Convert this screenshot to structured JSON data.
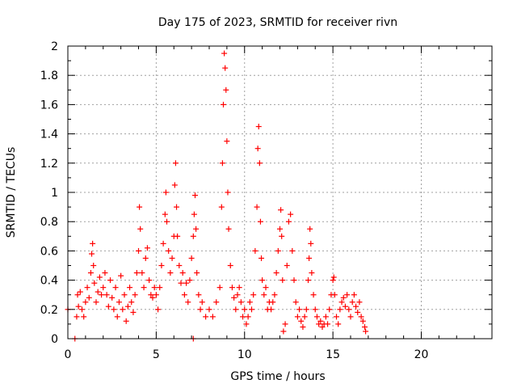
{
  "chart_data": {
    "type": "scatter",
    "title": "Day 175 of 2023, SRMTID for receiver rivn",
    "xlabel": "GPS time / hours",
    "ylabel": "SRMTID / TECUs",
    "xlim": [
      0,
      24
    ],
    "ylim": [
      0,
      2
    ],
    "x_ticks": [
      "0",
      "5",
      "10",
      "15",
      "20"
    ],
    "y_ticks": [
      "0",
      "0.2",
      "0.4",
      "0.6",
      "0.8",
      "1",
      "1.2",
      "1.4",
      "1.6",
      "1.8",
      "2"
    ],
    "grid": true,
    "marker": "+",
    "series": [
      {
        "color": "#ff0000",
        "points": [
          [
            0.0,
            0.2
          ],
          [
            0.4,
            0.0
          ],
          [
            0.5,
            0.15
          ],
          [
            0.55,
            0.3
          ],
          [
            0.6,
            0.22
          ],
          [
            0.7,
            0.32
          ],
          [
            0.8,
            0.2
          ],
          [
            0.9,
            0.15
          ],
          [
            1.0,
            0.25
          ],
          [
            1.1,
            0.35
          ],
          [
            1.2,
            0.28
          ],
          [
            1.3,
            0.45
          ],
          [
            1.35,
            0.58
          ],
          [
            1.4,
            0.65
          ],
          [
            1.45,
            0.5
          ],
          [
            1.5,
            0.38
          ],
          [
            1.6,
            0.25
          ],
          [
            1.7,
            0.32
          ],
          [
            1.8,
            0.42
          ],
          [
            1.9,
            0.3
          ],
          [
            2.0,
            0.35
          ],
          [
            2.1,
            0.45
          ],
          [
            2.2,
            0.3
          ],
          [
            2.3,
            0.22
          ],
          [
            2.4,
            0.4
          ],
          [
            2.5,
            0.28
          ],
          [
            2.6,
            0.2
          ],
          [
            2.7,
            0.35
          ],
          [
            2.8,
            0.15
          ],
          [
            2.9,
            0.25
          ],
          [
            3.0,
            0.43
          ],
          [
            3.1,
            0.2
          ],
          [
            3.2,
            0.3
          ],
          [
            3.3,
            0.12
          ],
          [
            3.4,
            0.22
          ],
          [
            3.5,
            0.35
          ],
          [
            3.6,
            0.25
          ],
          [
            3.7,
            0.18
          ],
          [
            3.8,
            0.3
          ],
          [
            3.9,
            0.45
          ],
          [
            4.0,
            0.6
          ],
          [
            4.05,
            0.9
          ],
          [
            4.1,
            0.75
          ],
          [
            4.2,
            0.45
          ],
          [
            4.3,
            0.35
          ],
          [
            4.4,
            0.55
          ],
          [
            4.5,
            0.62
          ],
          [
            4.6,
            0.4
          ],
          [
            4.7,
            0.3
          ],
          [
            4.8,
            0.28
          ],
          [
            4.9,
            0.35
          ],
          [
            5.0,
            0.3
          ],
          [
            5.1,
            0.2
          ],
          [
            5.2,
            0.35
          ],
          [
            5.3,
            0.5
          ],
          [
            5.4,
            0.65
          ],
          [
            5.5,
            0.85
          ],
          [
            5.55,
            1.0
          ],
          [
            5.6,
            0.8
          ],
          [
            5.7,
            0.6
          ],
          [
            5.8,
            0.45
          ],
          [
            5.9,
            0.55
          ],
          [
            6.0,
            0.7
          ],
          [
            6.05,
            1.05
          ],
          [
            6.1,
            1.2
          ],
          [
            6.15,
            0.9
          ],
          [
            6.2,
            0.7
          ],
          [
            6.3,
            0.5
          ],
          [
            6.4,
            0.38
          ],
          [
            6.5,
            0.45
          ],
          [
            6.6,
            0.3
          ],
          [
            6.7,
            0.38
          ],
          [
            6.8,
            0.25
          ],
          [
            6.9,
            0.4
          ],
          [
            7.0,
            0.55
          ],
          [
            7.1,
            0.7
          ],
          [
            7.15,
            0.85
          ],
          [
            7.2,
            0.98
          ],
          [
            7.25,
            0.75
          ],
          [
            7.3,
            0.45
          ],
          [
            7.4,
            0.3
          ],
          [
            7.5,
            0.2
          ],
          [
            7.6,
            0.25
          ],
          [
            7.8,
            0.15
          ],
          [
            8.0,
            0.2
          ],
          [
            8.2,
            0.15
          ],
          [
            8.4,
            0.25
          ],
          [
            8.6,
            0.35
          ],
          [
            8.7,
            0.9
          ],
          [
            8.75,
            1.2
          ],
          [
            8.8,
            1.6
          ],
          [
            8.85,
            1.95
          ],
          [
            8.9,
            1.85
          ],
          [
            8.95,
            1.7
          ],
          [
            9.0,
            1.35
          ],
          [
            9.05,
            1.0
          ],
          [
            9.1,
            0.75
          ],
          [
            9.2,
            0.5
          ],
          [
            9.3,
            0.35
          ],
          [
            9.4,
            0.28
          ],
          [
            9.5,
            0.2
          ],
          [
            9.6,
            0.3
          ],
          [
            9.7,
            0.35
          ],
          [
            9.8,
            0.25
          ],
          [
            9.9,
            0.15
          ],
          [
            10.0,
            0.2
          ],
          [
            10.1,
            0.1
          ],
          [
            10.2,
            0.15
          ],
          [
            10.3,
            0.25
          ],
          [
            10.4,
            0.2
          ],
          [
            10.5,
            0.3
          ],
          [
            10.6,
            0.6
          ],
          [
            10.7,
            0.9
          ],
          [
            10.75,
            1.3
          ],
          [
            10.8,
            1.45
          ],
          [
            10.85,
            1.2
          ],
          [
            10.9,
            0.8
          ],
          [
            10.95,
            0.55
          ],
          [
            11.0,
            0.4
          ],
          [
            11.1,
            0.3
          ],
          [
            11.2,
            0.35
          ],
          [
            11.3,
            0.2
          ],
          [
            11.4,
            0.25
          ],
          [
            11.5,
            0.2
          ],
          [
            11.6,
            0.25
          ],
          [
            11.7,
            0.3
          ],
          [
            11.8,
            0.45
          ],
          [
            11.9,
            0.6
          ],
          [
            12.0,
            0.75
          ],
          [
            12.05,
            0.88
          ],
          [
            12.1,
            0.7
          ],
          [
            12.15,
            0.4
          ],
          [
            12.2,
            0.05
          ],
          [
            12.3,
            0.1
          ],
          [
            12.4,
            0.5
          ],
          [
            12.5,
            0.8
          ],
          [
            12.6,
            0.85
          ],
          [
            12.7,
            0.6
          ],
          [
            12.8,
            0.4
          ],
          [
            12.9,
            0.25
          ],
          [
            13.0,
            0.15
          ],
          [
            13.1,
            0.2
          ],
          [
            13.2,
            0.12
          ],
          [
            13.3,
            0.08
          ],
          [
            13.4,
            0.15
          ],
          [
            13.5,
            0.2
          ],
          [
            13.6,
            0.4
          ],
          [
            13.65,
            0.55
          ],
          [
            13.7,
            0.75
          ],
          [
            13.75,
            0.65
          ],
          [
            13.8,
            0.45
          ],
          [
            13.9,
            0.3
          ],
          [
            14.0,
            0.2
          ],
          [
            14.1,
            0.15
          ],
          [
            14.2,
            0.1
          ],
          [
            14.3,
            0.12
          ],
          [
            14.4,
            0.08
          ],
          [
            14.5,
            0.1
          ],
          [
            14.6,
            0.15
          ],
          [
            14.7,
            0.1
          ],
          [
            14.8,
            0.2
          ],
          [
            14.9,
            0.3
          ],
          [
            15.0,
            0.4
          ],
          [
            15.05,
            0.42
          ],
          [
            15.1,
            0.3
          ],
          [
            15.2,
            0.15
          ],
          [
            15.3,
            0.1
          ],
          [
            15.4,
            0.2
          ],
          [
            15.5,
            0.25
          ],
          [
            15.6,
            0.28
          ],
          [
            15.7,
            0.22
          ],
          [
            15.8,
            0.3
          ],
          [
            15.9,
            0.2
          ],
          [
            16.0,
            0.15
          ],
          [
            16.1,
            0.25
          ],
          [
            16.2,
            0.3
          ],
          [
            16.3,
            0.22
          ],
          [
            16.4,
            0.18
          ],
          [
            16.5,
            0.25
          ],
          [
            16.6,
            0.15
          ],
          [
            16.7,
            0.12
          ],
          [
            16.8,
            0.08
          ],
          [
            16.85,
            0.05
          ],
          [
            7.1,
            0.0
          ]
        ]
      }
    ]
  }
}
